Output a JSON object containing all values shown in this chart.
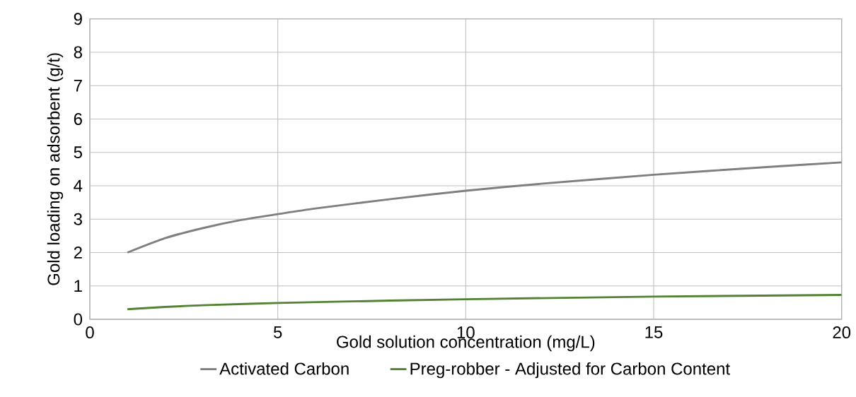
{
  "chart_data": {
    "type": "line",
    "xlabel": "Gold solution concentration (mg/L)",
    "ylabel": "Gold loading on adsorbent (g/t)",
    "xlim": [
      0,
      20
    ],
    "ylim": [
      0,
      9
    ],
    "xticks": [
      0,
      5,
      10,
      15,
      20
    ],
    "yticks": [
      0,
      1,
      2,
      3,
      4,
      5,
      6,
      7,
      8,
      9
    ],
    "grid": true,
    "legend": "bottom",
    "marker": "none",
    "line_style": "solid",
    "series": [
      {
        "name": "Activated Carbon",
        "color": "#7f7f7f",
        "x": [
          1,
          2,
          3,
          4,
          5,
          6,
          8,
          10,
          12,
          15,
          18,
          20
        ],
        "values": [
          2.0,
          2.43,
          2.73,
          2.97,
          3.15,
          3.32,
          3.6,
          3.85,
          4.06,
          4.33,
          4.56,
          4.7
        ]
      },
      {
        "name": "Preg-robber - Adjusted for Carbon Content",
        "color": "#548235",
        "x": [
          1,
          2,
          3,
          5,
          8,
          10,
          15,
          20
        ],
        "values": [
          0.3,
          0.37,
          0.42,
          0.49,
          0.56,
          0.6,
          0.68,
          0.73
        ]
      }
    ]
  }
}
